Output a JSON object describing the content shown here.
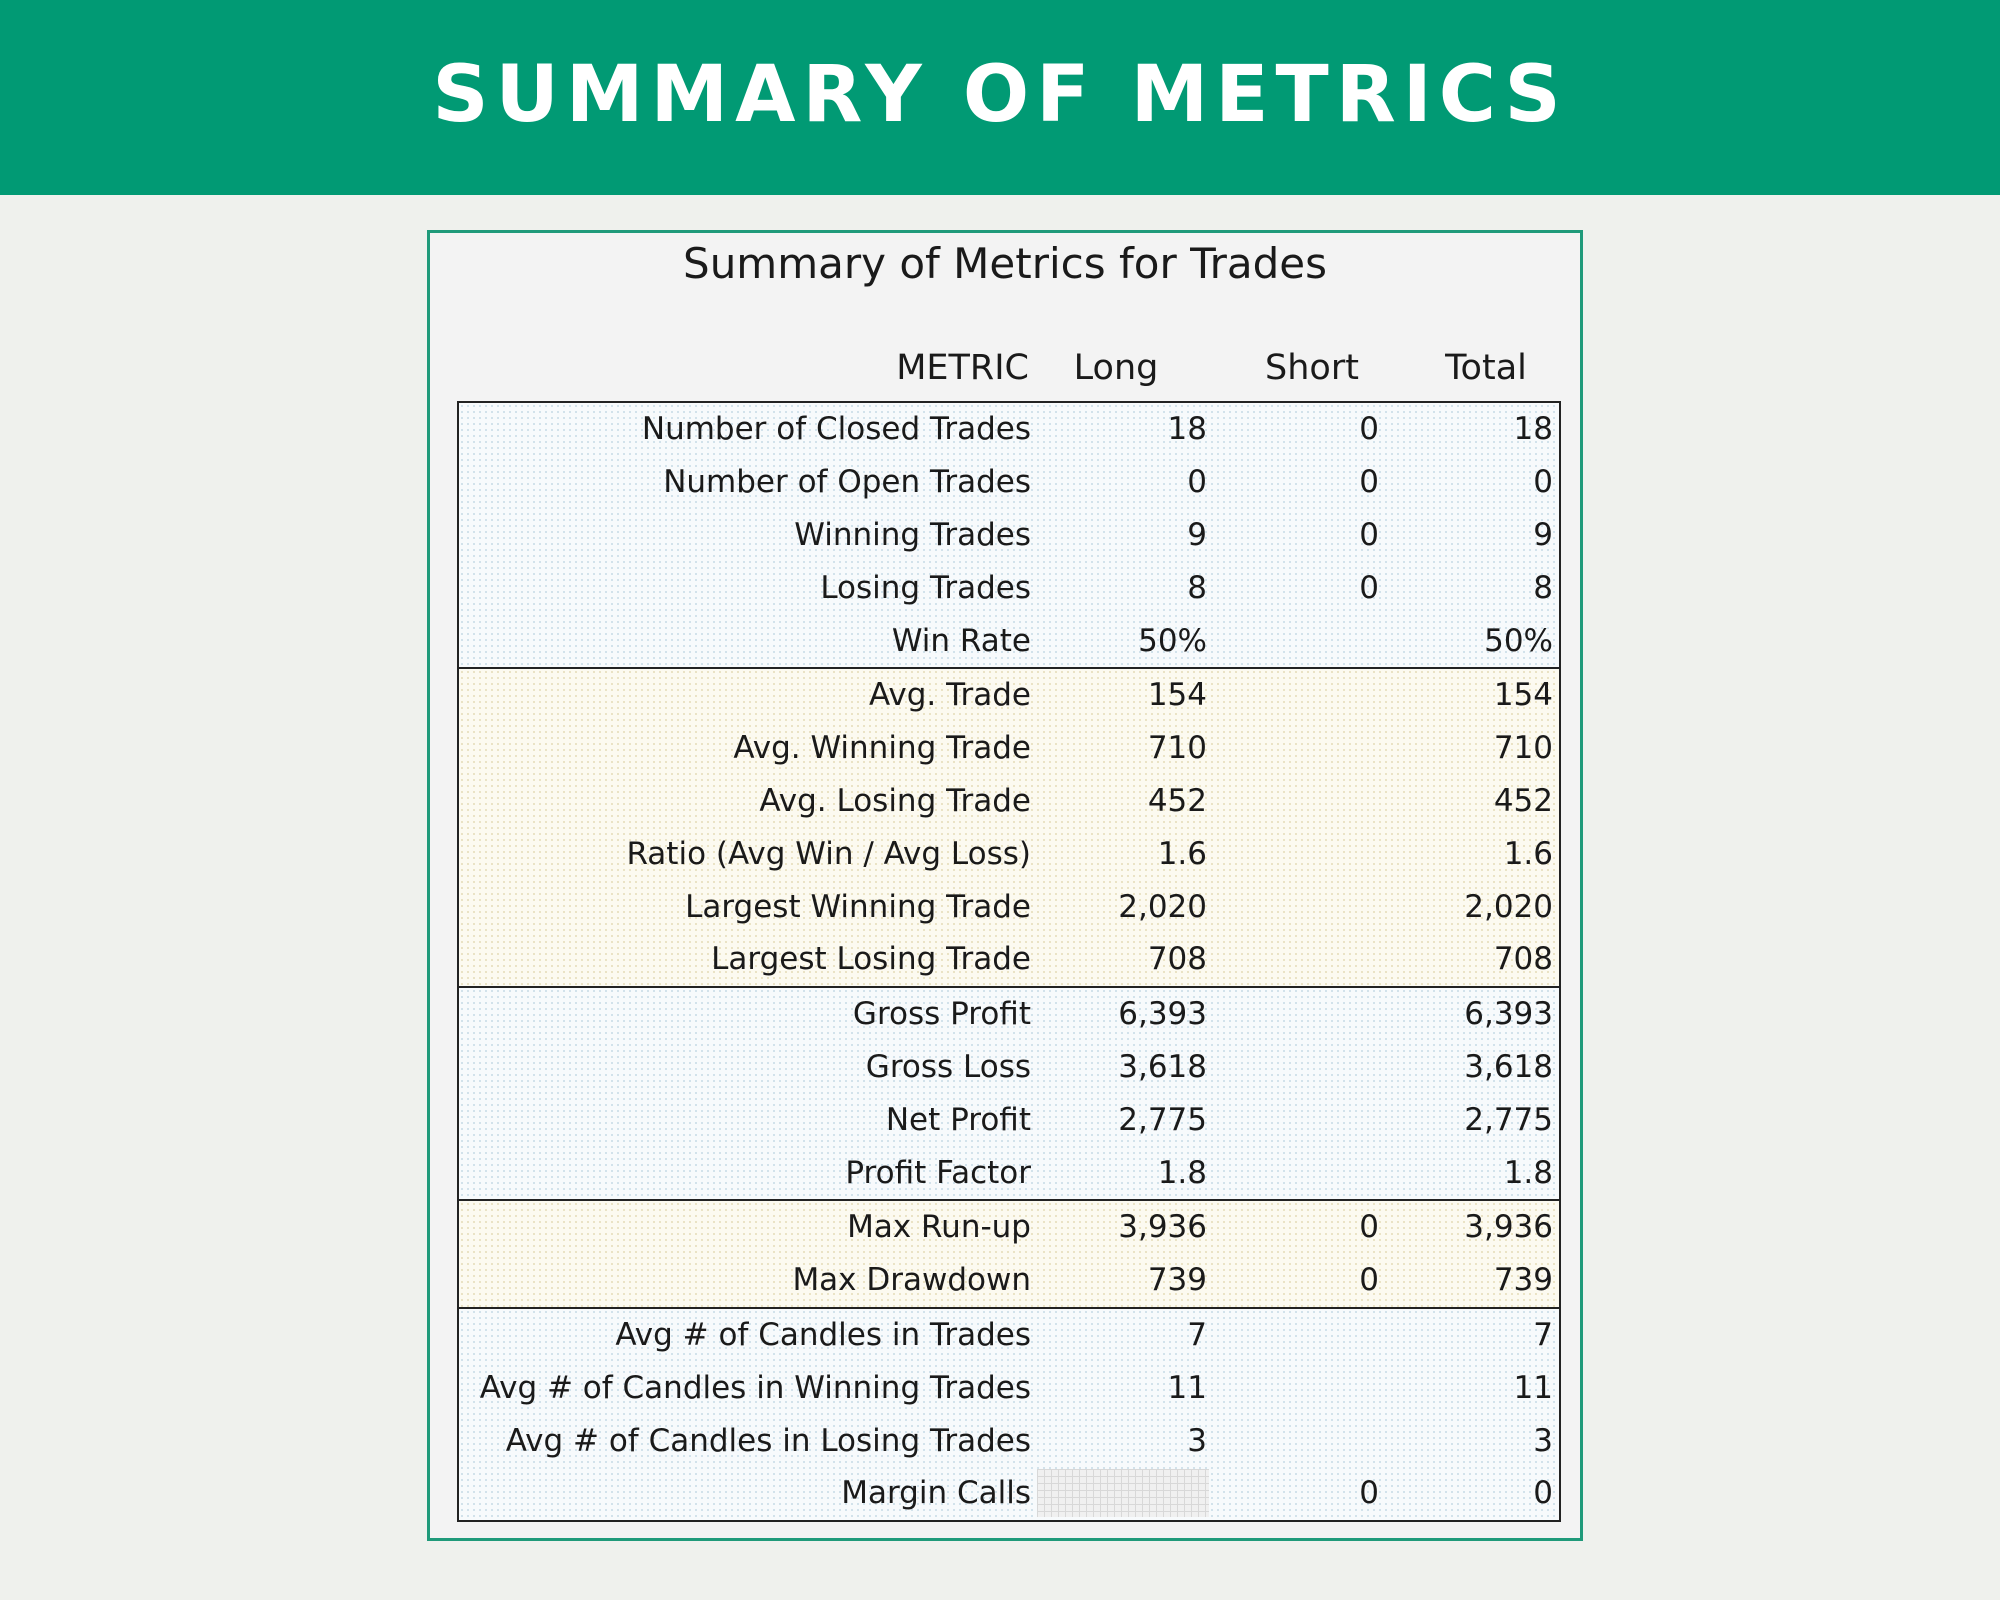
{
  "banner": {
    "title": "SUMMARY OF METRICS"
  },
  "card": {
    "title": "Summary of Metrics for Trades",
    "headers": {
      "metric": "METRIC",
      "long": "Long",
      "short": "Short",
      "total": "Total"
    }
  },
  "groups": [
    {
      "shade": "blue",
      "rows": [
        {
          "metric": "Number of Closed Trades",
          "long": "18",
          "short": "0",
          "total": "18"
        },
        {
          "metric": "Number of Open Trades",
          "long": "0",
          "short": "0",
          "total": "0"
        },
        {
          "metric": "Winning Trades",
          "long": "9",
          "short": "0",
          "total": "9"
        },
        {
          "metric": "Losing Trades",
          "long": "8",
          "short": "0",
          "total": "8"
        },
        {
          "metric": "Win Rate",
          "long": "50%",
          "short": "",
          "total": "50%"
        }
      ]
    },
    {
      "shade": "cream",
      "rows": [
        {
          "metric": "Avg. Trade",
          "long": "154",
          "short": "",
          "total": "154"
        },
        {
          "metric": "Avg. Winning Trade",
          "long": "710",
          "short": "",
          "total": "710"
        },
        {
          "metric": "Avg. Losing Trade",
          "long": "452",
          "short": "",
          "total": "452"
        },
        {
          "metric": "Ratio (Avg Win / Avg Loss)",
          "long": "1.6",
          "short": "",
          "total": "1.6"
        },
        {
          "metric": "Largest Winning Trade",
          "long": "2,020",
          "short": "",
          "total": "2,020"
        },
        {
          "metric": "Largest Losing Trade",
          "long": "708",
          "short": "",
          "total": "708"
        }
      ]
    },
    {
      "shade": "blue",
      "rows": [
        {
          "metric": "Gross Profit",
          "long": "6,393",
          "short": "",
          "total": "6,393"
        },
        {
          "metric": "Gross Loss",
          "long": "3,618",
          "short": "",
          "total": "3,618"
        },
        {
          "metric": "Net Profit",
          "long": "2,775",
          "short": "",
          "total": "2,775"
        },
        {
          "metric": "Profit Factor",
          "long": "1.8",
          "short": "",
          "total": "1.8"
        }
      ]
    },
    {
      "shade": "cream",
      "rows": [
        {
          "metric": "Max Run-up",
          "long": "3,936",
          "short": "0",
          "total": "3,936"
        },
        {
          "metric": "Max Drawdown",
          "long": "739",
          "short": "0",
          "total": "739"
        }
      ]
    },
    {
      "shade": "blue",
      "rows": [
        {
          "metric": "Avg # of Candles in Trades",
          "long": "7",
          "short": "",
          "total": "7"
        },
        {
          "metric": "Avg # of Candles in Winning Trades",
          "long": "11",
          "short": "",
          "total": "11"
        },
        {
          "metric": "Avg # of Candles in Losing Trades",
          "long": "3",
          "short": "",
          "total": "3"
        },
        {
          "metric": "Margin Calls",
          "long": "",
          "long_hatched": true,
          "short": "0",
          "total": "0"
        }
      ]
    }
  ]
}
